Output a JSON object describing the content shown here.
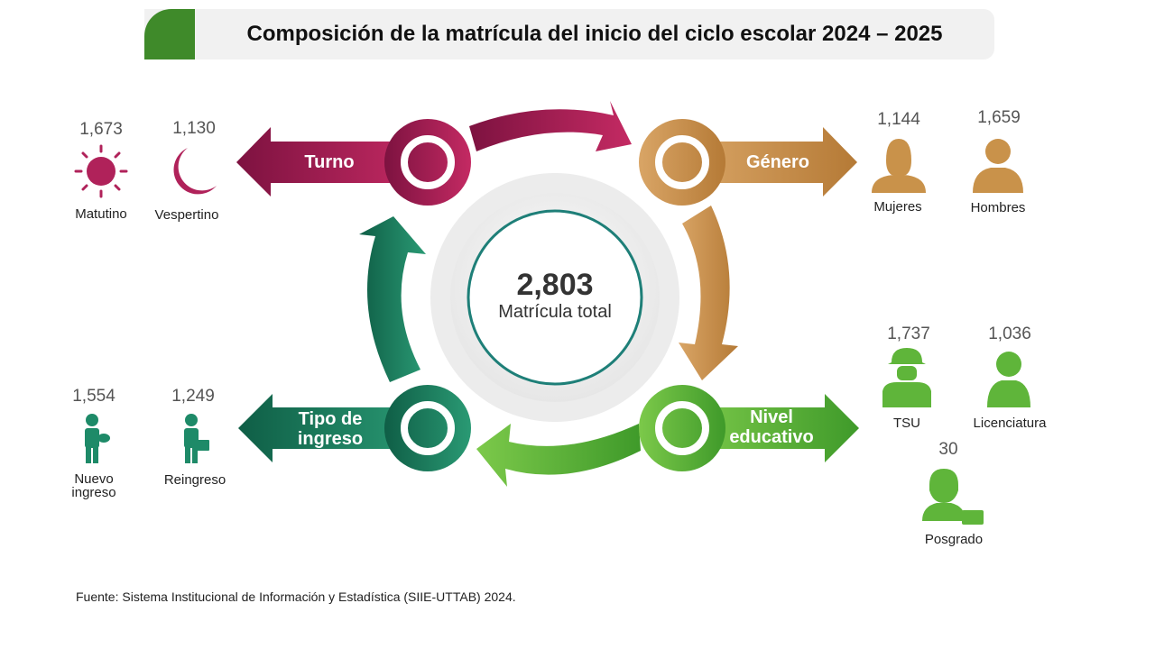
{
  "title": "Composición de la matrícula del inicio del ciclo escolar 2024 – 2025",
  "center": {
    "value": "2,803",
    "label": "Matrícula total"
  },
  "categories": {
    "turno": {
      "label": "Turno",
      "items": [
        {
          "label": "Matutino",
          "value": "1,673",
          "icon": "sun-icon"
        },
        {
          "label": "Vespertino",
          "value": "1,130",
          "icon": "moon-icon"
        }
      ]
    },
    "genero": {
      "label": "Género",
      "items": [
        {
          "label": "Mujeres",
          "value": "1,144",
          "icon": "woman-icon"
        },
        {
          "label": "Hombres",
          "value": "1,659",
          "icon": "man-icon"
        }
      ]
    },
    "nivel": {
      "label_line1": "Nivel",
      "label_line2": "educativo",
      "items": [
        {
          "label": "TSU",
          "value": "1,737",
          "icon": "worker-icon"
        },
        {
          "label": "Licenciatura",
          "value": "1,036",
          "icon": "graduate-icon"
        },
        {
          "label": "Posgrado",
          "value": "30",
          "icon": "professional-icon"
        }
      ]
    },
    "tipo": {
      "label_line1": "Tipo de",
      "label_line2": "ingreso",
      "items": [
        {
          "label_line1": "Nuevo",
          "label_line2": "ingreso",
          "value": "1,554",
          "icon": "student-icon"
        },
        {
          "label": "Reingreso",
          "value": "1,249",
          "icon": "briefcase-person-icon"
        }
      ]
    }
  },
  "colors": {
    "turno": "#b0225a",
    "genero": "#c9924a",
    "nivel": "#5fb53a",
    "tipo": "#1e8a68",
    "title_accent": "#3f8a2a"
  },
  "source": "Fuente: Sistema Institucional de Información y Estadística (SIIE-UTTAB) 2024."
}
